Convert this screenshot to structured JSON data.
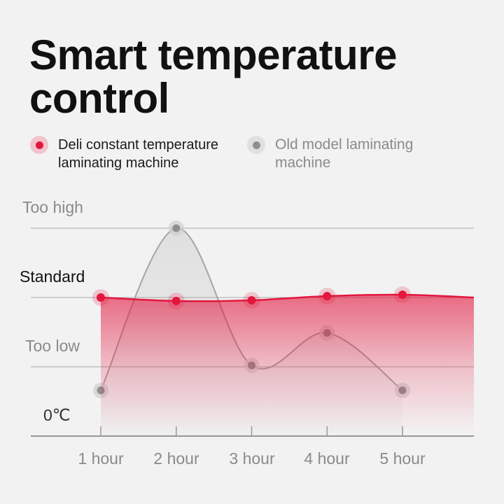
{
  "title": "Smart temperature control",
  "legend": [
    {
      "label": "Deli constant temperature laminating machine",
      "color": "#e3173e"
    },
    {
      "label": "Old model laminating machine",
      "color": "#8f8f8f"
    }
  ],
  "chart_data": {
    "type": "line",
    "categories": [
      "1 hour",
      "2 hour",
      "3 hour",
      "4 hour",
      "5 hour"
    ],
    "y_levels": [
      "0℃",
      "Too low",
      "Standard",
      "Too high"
    ],
    "ylim": [
      0,
      3
    ],
    "grid": true,
    "legend_position": "top-left",
    "series": [
      {
        "name": "Deli constant temperature laminating machine",
        "values": [
          2.0,
          1.95,
          1.96,
          2.02,
          2.04
        ],
        "color": "#e3173e",
        "filled": true
      },
      {
        "name": "Old model laminating machine",
        "values": [
          0.66,
          3.0,
          1.02,
          1.49,
          0.66
        ],
        "color": "#8f8f8f"
      }
    ]
  }
}
